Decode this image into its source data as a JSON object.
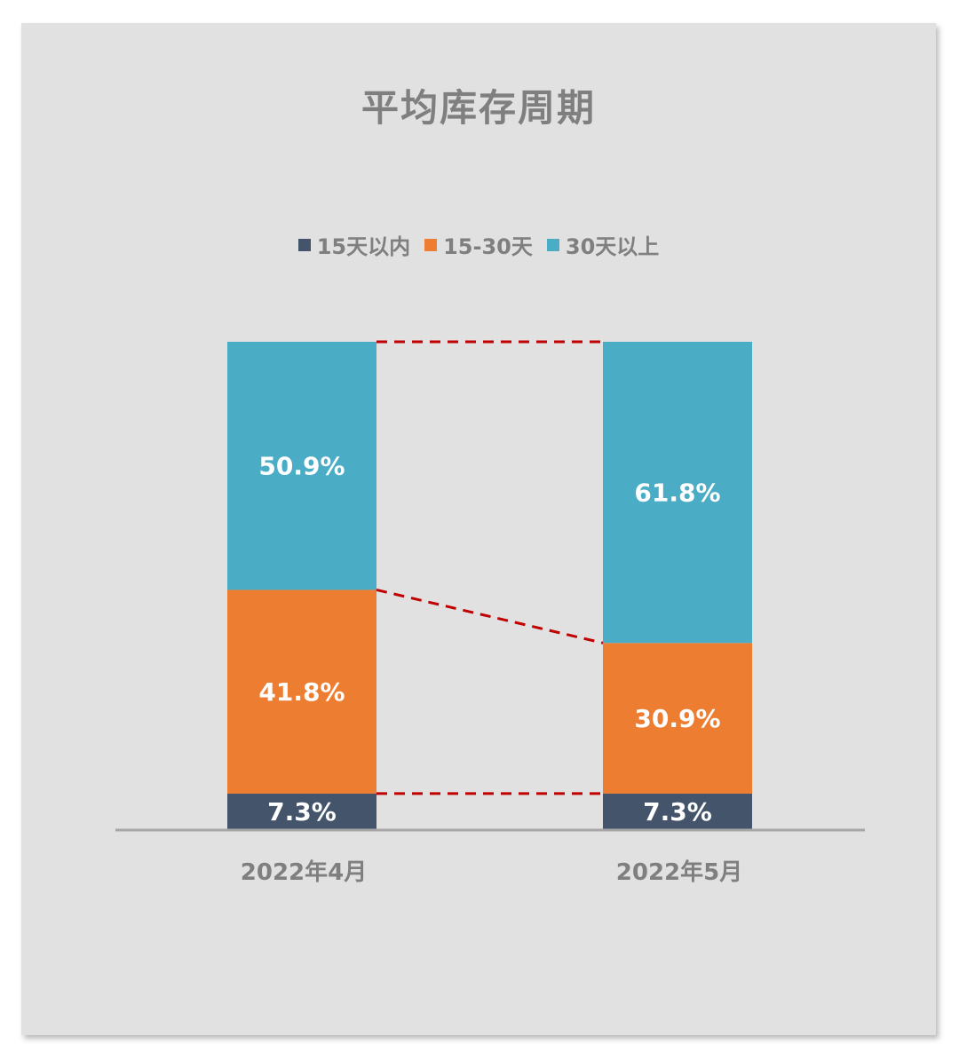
{
  "chart_data": {
    "type": "bar",
    "stacked": true,
    "percent_stacked": true,
    "title": "平均库存周期",
    "categories": [
      "2022年4月",
      "2022年5月"
    ],
    "series": [
      {
        "name": "15天以内",
        "values": [
          7.3,
          7.3
        ],
        "labels": [
          "7.3%",
          "7.3%"
        ],
        "color": "#44546a"
      },
      {
        "name": "15-30天",
        "values": [
          41.8,
          30.9
        ],
        "labels": [
          "41.8%",
          "30.9%"
        ],
        "color": "#ed7d31"
      },
      {
        "name": "30天以上",
        "values": [
          50.9,
          61.8
        ],
        "labels": [
          "50.9%",
          "61.8%"
        ],
        "color": "#4bacc6"
      }
    ],
    "ylim": [
      0,
      100
    ],
    "legend_position": "top",
    "grid": false,
    "series_lines": true,
    "series_line_color": "#c00000",
    "text_color": "#7f7f7f",
    "background": "#e1e1e1"
  }
}
